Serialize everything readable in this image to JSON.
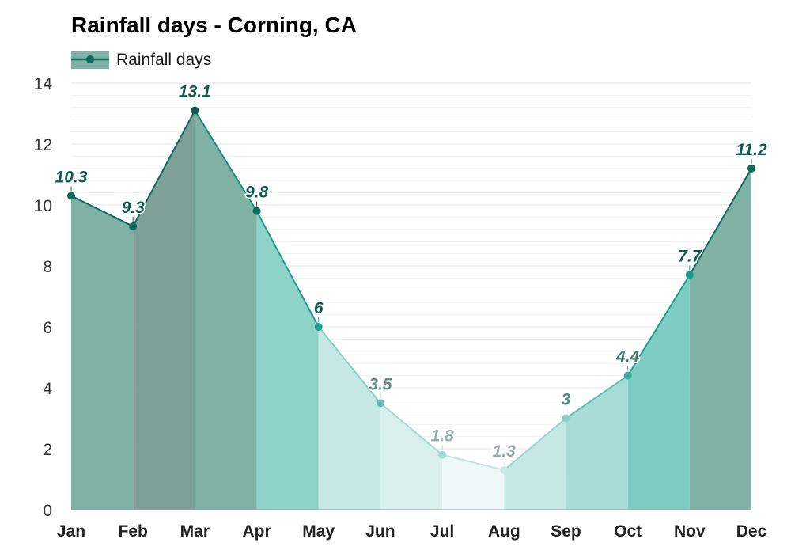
{
  "chart_data": {
    "type": "area",
    "title": "Rainfall days - Corning, CA",
    "categories": [
      "Jan",
      "Feb",
      "Mar",
      "Apr",
      "May",
      "Jun",
      "Jul",
      "Aug",
      "Sep",
      "Oct",
      "Nov",
      "Dec"
    ],
    "series": [
      {
        "name": "Rainfall days",
        "values": [
          10.3,
          9.3,
          13.1,
          9.8,
          6,
          3.5,
          1.8,
          1.3,
          3,
          4.4,
          7.7,
          11.2
        ],
        "value_labels": [
          "10.3",
          "9.3",
          "13.1",
          "9.8",
          "6",
          "3.5",
          "1.8",
          "1.3",
          "3",
          "4.4",
          "7.7",
          "11.2"
        ]
      }
    ],
    "ylim": [
      0,
      14
    ],
    "yticks": [
      0,
      2,
      4,
      6,
      8,
      10,
      12,
      14
    ],
    "ytick_labels": [
      "0",
      "2",
      "4",
      "6",
      "8",
      "10",
      "12",
      "14"
    ],
    "xlabel": "",
    "ylabel": "",
    "grid": true,
    "legend": {
      "position": "top-left",
      "entries": [
        "Rainfall days"
      ]
    },
    "colors": {
      "line": "#0d6b5e",
      "legend_swatch": "#7fb1a5",
      "grid": "#e6e6e6",
      "axis": "#999999",
      "segment_fills": [
        "#7fb1a5",
        "#7f9f99",
        "#7fb1a5",
        "#8fd3c8",
        "#c5e8e4",
        "#d9efec",
        "#eff8f8",
        "#c5e8e4",
        "#a8ddd7",
        "#7ecdc3",
        "#7fb1a5",
        "#7fb1a5"
      ],
      "segment_lines": [
        "#0d6b5e",
        "#0d6b5e",
        "#1c8a7c",
        "#1a9d8e",
        "#88cfc5",
        "#a5dad3",
        "#bfe4df",
        "#99d6cf",
        "#5dbdb1",
        "#1a9d8e",
        "#0d6b5e",
        "#0d6b5e"
      ],
      "point_colors": [
        "#0d6b5e",
        "#0d6b5e",
        "#0d5b4f",
        "#0d6b5e",
        "#1a9d8e",
        "#66bbb0",
        "#a5dad3",
        "#c5e8e4",
        "#88cfc5",
        "#3fa99c",
        "#1a9d8e",
        "#0d6b5e"
      ],
      "label_colors": [
        "#0d5b4f",
        "#0d5b4f",
        "#0d5b4f",
        "#0d5b4f",
        "#0d5b4f",
        "#5f8f89",
        "#8fb0ac",
        "#9aaaa8",
        "#4d8a83",
        "#3d7770",
        "#0d5b4f",
        "#0d5b4f"
      ]
    }
  }
}
